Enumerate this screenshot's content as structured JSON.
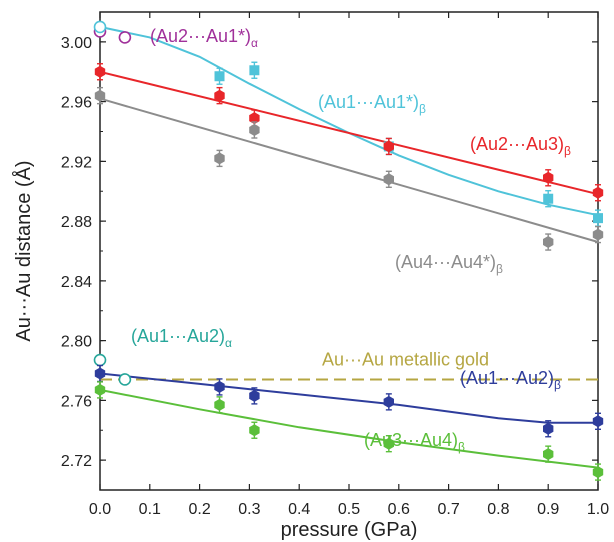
{
  "chart_data": {
    "type": "scatter",
    "xlabel": "pressure (GPa)",
    "ylabel": "Au···Au distance (Å)",
    "xlim": [
      0.0,
      1.0
    ],
    "ylim": [
      2.7,
      3.02
    ],
    "x_ticks": [
      "0.0",
      "0.1",
      "0.2",
      "0.3",
      "0.4",
      "0.5",
      "0.6",
      "0.7",
      "0.8",
      "0.9",
      "1.0"
    ],
    "y_ticks": [
      "2.72",
      "2.76",
      "2.80",
      "2.84",
      "2.88",
      "2.92",
      "2.96",
      "3.00"
    ],
    "reference_line": {
      "label": "Au···Au metallic gold",
      "y": 2.774,
      "color": "#b5a642"
    },
    "series": [
      {
        "name": "(Au2···Au1*)",
        "subscript": "α",
        "color": "#a0309a",
        "marker": "open-circle",
        "points": [
          [
            0.0,
            3.007
          ],
          [
            0.05,
            3.003
          ]
        ],
        "fit": []
      },
      {
        "name": "(Au1···Au1*)",
        "subscript": "β",
        "color": "#4fc3d9",
        "marker": "square",
        "open_points": [
          [
            0.0,
            3.01
          ]
        ],
        "points": [
          [
            0.24,
            2.977
          ],
          [
            0.31,
            2.981
          ],
          [
            0.58,
            2.93
          ],
          [
            0.9,
            2.895
          ],
          [
            1.0,
            2.882
          ]
        ],
        "fit": [
          [
            0.0,
            3.01
          ],
          [
            0.1,
            3.003
          ],
          [
            0.2,
            2.99
          ],
          [
            0.3,
            2.972
          ],
          [
            0.4,
            2.955
          ],
          [
            0.5,
            2.939
          ],
          [
            0.6,
            2.924
          ],
          [
            0.7,
            2.911
          ],
          [
            0.8,
            2.9
          ],
          [
            0.9,
            2.891
          ],
          [
            1.0,
            2.884
          ]
        ]
      },
      {
        "name": "(Au2···Au3)",
        "subscript": "β",
        "color": "#e8262a",
        "marker": "hexagon",
        "points": [
          [
            0.0,
            2.98
          ],
          [
            0.24,
            2.964
          ],
          [
            0.31,
            2.949
          ],
          [
            0.58,
            2.93
          ],
          [
            0.9,
            2.909
          ],
          [
            1.0,
            2.899
          ]
        ],
        "fit": [
          [
            0.0,
            2.98
          ],
          [
            1.0,
            2.898
          ]
        ]
      },
      {
        "name": "(Au4···Au4*)",
        "subscript": "β",
        "color": "#8c8c8c",
        "marker": "hexagon",
        "points": [
          [
            0.0,
            2.964
          ],
          [
            0.24,
            2.922
          ],
          [
            0.31,
            2.941
          ],
          [
            0.58,
            2.908
          ],
          [
            0.9,
            2.866
          ],
          [
            1.0,
            2.871
          ]
        ],
        "fit": [
          [
            0.0,
            2.962
          ],
          [
            1.0,
            2.866
          ]
        ]
      },
      {
        "name": "(Au1···Au2)",
        "subscript": "α",
        "color": "#26a69a",
        "marker": "open-circle",
        "points": [
          [
            0.0,
            2.787
          ],
          [
            0.05,
            2.774
          ]
        ],
        "fit": []
      },
      {
        "name": "(Au1···Au2)",
        "subscript": "β",
        "color": "#2e3d9c",
        "marker": "hexagon",
        "points": [
          [
            0.0,
            2.778
          ],
          [
            0.24,
            2.769
          ],
          [
            0.31,
            2.763
          ],
          [
            0.58,
            2.759
          ],
          [
            0.9,
            2.741
          ],
          [
            1.0,
            2.746
          ]
        ],
        "fit": [
          [
            0.0,
            2.778
          ],
          [
            0.2,
            2.771
          ],
          [
            0.4,
            2.764
          ],
          [
            0.6,
            2.757
          ],
          [
            0.8,
            2.748
          ],
          [
            0.9,
            2.745
          ],
          [
            1.0,
            2.745
          ]
        ]
      },
      {
        "name": "(Au3···Au4)",
        "subscript": "β",
        "color": "#5bbf3a",
        "marker": "hexagon",
        "points": [
          [
            0.0,
            2.767
          ],
          [
            0.24,
            2.757
          ],
          [
            0.31,
            2.74
          ],
          [
            0.58,
            2.731
          ],
          [
            0.9,
            2.724
          ],
          [
            1.0,
            2.712
          ]
        ],
        "fit": [
          [
            0.0,
            2.767
          ],
          [
            0.2,
            2.754
          ],
          [
            0.4,
            2.742
          ],
          [
            0.6,
            2.732
          ],
          [
            0.8,
            2.723
          ],
          [
            1.0,
            2.715
          ]
        ]
      }
    ]
  }
}
